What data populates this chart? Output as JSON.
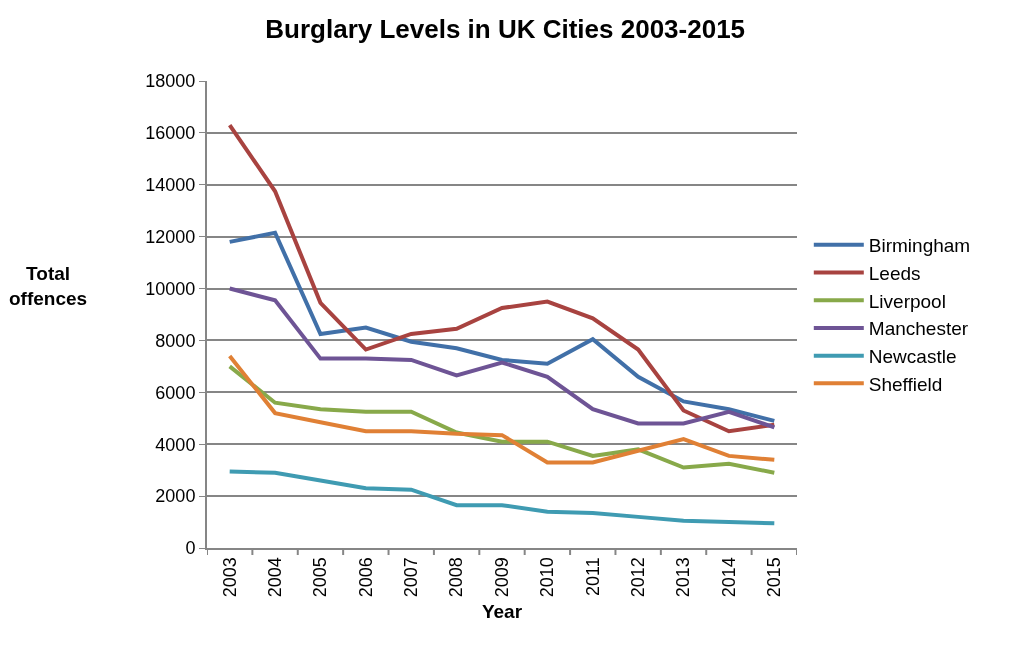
{
  "chart_data": {
    "type": "line",
    "title": "Burglary Levels in UK Cities 2003-2015",
    "xlabel": "Year",
    "ylabel": "Total offences",
    "categories": [
      "2003",
      "2004",
      "2005",
      "2006",
      "2007",
      "2008",
      "2009",
      "2010",
      "2011",
      "2012",
      "2013",
      "2014",
      "2015"
    ],
    "series": [
      {
        "name": "Birmingham",
        "color": "#4170a8",
        "values": [
          11800,
          12150,
          8250,
          8500,
          7950,
          7700,
          7250,
          7100,
          8050,
          6600,
          5650,
          5350,
          4900
        ]
      },
      {
        "name": "Leeds",
        "color": "#a84340",
        "values": [
          16300,
          13750,
          9450,
          7650,
          8250,
          8450,
          9250,
          9500,
          8850,
          7650,
          5300,
          4500,
          4750
        ]
      },
      {
        "name": "Liverpool",
        "color": "#88a94a",
        "values": [
          7000,
          5600,
          5350,
          5250,
          5250,
          4450,
          4100,
          4100,
          3550,
          3800,
          3100,
          3250,
          2900
        ]
      },
      {
        "name": "Manchester",
        "color": "#6e5495",
        "values": [
          10000,
          9550,
          7300,
          7300,
          7250,
          6650,
          7150,
          6600,
          5350,
          4800,
          4800,
          5250,
          4650
        ]
      },
      {
        "name": "Newcastle",
        "color": "#3f9bb2",
        "values": [
          2950,
          2900,
          2600,
          2300,
          2250,
          1650,
          1650,
          1400,
          1350,
          1200,
          1050,
          1000,
          950
        ]
      },
      {
        "name": "Sheffield",
        "color": "#e08035",
        "values": [
          7400,
          5200,
          4850,
          4500,
          4500,
          4400,
          4350,
          3300,
          3300,
          3750,
          4200,
          3550,
          3400
        ]
      }
    ],
    "ylim": [
      0,
      18000
    ],
    "yticks": [
      0,
      2000,
      4000,
      6000,
      8000,
      10000,
      12000,
      14000,
      16000,
      18000
    ],
    "grid": "y",
    "legend": "right",
    "marker": "none",
    "line_style": "solid"
  }
}
